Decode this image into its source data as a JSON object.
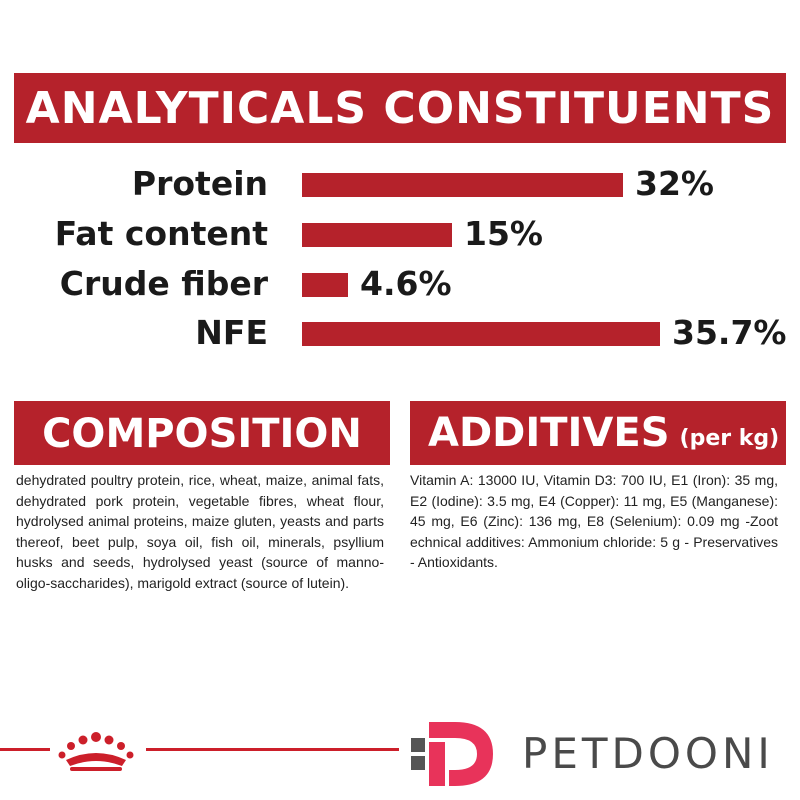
{
  "analytics": {
    "title": "ANALYTICALS CONSTITUENTS",
    "rows": [
      {
        "label": "Protein",
        "value_text": "32%",
        "value": 32
      },
      {
        "label": "Fat content",
        "value_text": "15%",
        "value": 15
      },
      {
        "label": "Crude fiber",
        "value_text": "4.6%",
        "value": 4.6
      },
      {
        "label": "NFE",
        "value_text": "35.7%",
        "value": 35.7
      }
    ]
  },
  "composition": {
    "title": "COMPOSITION",
    "text": "dehydrated poultry protein, rice, wheat, maize, animal fats, dehydrated pork protein, vegetable fibres, wheat flour, hydrolysed animal proteins, maize gluten, yeasts and parts thereof, beet pulp, soya oil, fish oil, minerals, psyllium husks and seeds, hydrolysed yeast (source of manno-oligo-saccharides), marigold extract (source of lutein)."
  },
  "additives": {
    "title": "ADDITIVES",
    "unit": "(per kg)",
    "text": "Vitamin A: 13000 IU, Vitamin D3: 700 IU, E1 (Iron): 35 mg, E2 (Iodine): 3.5 mg, E4 (Copper): 11 mg, E5 (Manganese): 45 mg, E6 (Zinc): 136 mg, E8 (Selenium): 0.09 mg -Zoot echnical additives: Ammonium chloride: 5 g - Preservatives - Antioxidants."
  },
  "footer": {
    "crown_icon": "crown-icon",
    "brand_icon": "petdooni-logo-icon",
    "brand_name": "PETDOONI"
  },
  "colors": {
    "accent": "#b5222b",
    "line": "#cc1f2a",
    "logo_pink": "#e8335a",
    "logo_gray": "#555555"
  }
}
